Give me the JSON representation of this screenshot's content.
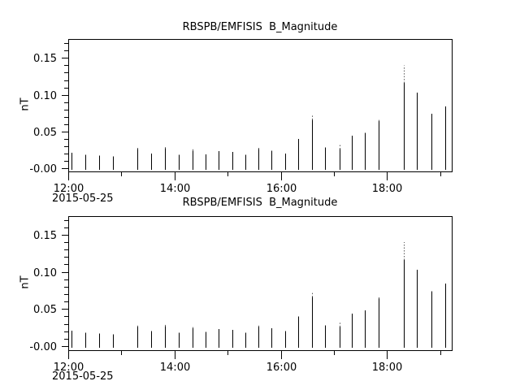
{
  "page": {
    "background": "#ffffff",
    "foreground": "#000000",
    "spike_color": "#000000",
    "dot_color": "#5a5a5a"
  },
  "plots": [
    {
      "title": "RBSPB/EMFISIS  B_Magnitude",
      "ylabel": "nT",
      "date_label": "2015-05-25"
    },
    {
      "title": "RBSPB/EMFISIS  B_Magnitude",
      "ylabel": "nT",
      "date_label": "2015-05-25"
    }
  ],
  "chart_data": [
    {
      "type": "bar",
      "subtype": "vertical-range-spikes",
      "panel": "top",
      "title": "RBSPB/EMFISIS  B_Magnitude",
      "ylabel": "nT",
      "date": "2015-05-25",
      "x_unit": "minutes after 12:00",
      "xlim": [
        0,
        433
      ],
      "ylim": [
        -0.0045,
        0.176
      ],
      "x_ticks_major": [
        {
          "t": 0,
          "label": "12:00"
        },
        {
          "t": 120,
          "label": "14:00"
        },
        {
          "t": 240,
          "label": "16:00"
        },
        {
          "t": 360,
          "label": "18:00"
        }
      ],
      "x_ticks_minor": [
        60,
        180,
        300,
        420
      ],
      "y_ticks_major": [
        {
          "v": 0.0,
          "label": "-0.00"
        },
        {
          "v": 0.05,
          "label": "0.05"
        },
        {
          "v": 0.1,
          "label": "0.10"
        },
        {
          "v": 0.15,
          "label": "0.15"
        }
      ],
      "y_minor_step": 0.01,
      "spike_low": -0.002,
      "spikes": [
        {
          "t": 4,
          "hi": 0.021
        },
        {
          "t": 19,
          "hi": 0.018
        },
        {
          "t": 35,
          "hi": 0.017
        },
        {
          "t": 50,
          "hi": 0.016
        },
        {
          "t": 78,
          "hi": 0.026,
          "dot": 0.028
        },
        {
          "t": 94,
          "hi": 0.02
        },
        {
          "t": 109,
          "hi": 0.027,
          "dot": 0.029
        },
        {
          "t": 125,
          "hi": 0.018
        },
        {
          "t": 140,
          "hi": 0.024,
          "dot": 0.026
        },
        {
          "t": 155,
          "hi": 0.019
        },
        {
          "t": 170,
          "hi": 0.023
        },
        {
          "t": 185,
          "hi": 0.022
        },
        {
          "t": 200,
          "hi": 0.018
        },
        {
          "t": 215,
          "hi": 0.026,
          "dot": 0.028
        },
        {
          "t": 229,
          "hi": 0.024
        },
        {
          "t": 245,
          "hi": 0.02
        },
        {
          "t": 260,
          "hi": 0.04
        },
        {
          "t": 275,
          "hi": 0.066,
          "dot": 0.073
        },
        {
          "t": 290,
          "hi": 0.028
        },
        {
          "t": 306,
          "hi": 0.026,
          "dot": 0.033
        },
        {
          "t": 320,
          "hi": 0.044
        },
        {
          "t": 335,
          "hi": 0.048
        },
        {
          "t": 350,
          "hi": 0.064,
          "dot": 0.066
        },
        {
          "t": 379,
          "hi": 0.116,
          "dot": 0.14
        },
        {
          "t": 394,
          "hi": 0.103
        },
        {
          "t": 410,
          "hi": 0.074
        },
        {
          "t": 426,
          "hi": 0.084
        }
      ]
    },
    {
      "type": "bar",
      "subtype": "vertical-range-spikes",
      "panel": "bottom",
      "title": "RBSPB/EMFISIS  B_Magnitude",
      "ylabel": "nT",
      "date": "2015-05-25",
      "x_unit": "minutes after 12:00",
      "xlim": [
        0,
        433
      ],
      "ylim": [
        -0.0055,
        0.175
      ],
      "x_ticks_major": [
        {
          "t": 0,
          "label": "12:00"
        },
        {
          "t": 120,
          "label": "14:00"
        },
        {
          "t": 240,
          "label": "16:00"
        },
        {
          "t": 360,
          "label": "18:00"
        }
      ],
      "x_ticks_minor": [
        60,
        180,
        300,
        420
      ],
      "y_ticks_major": [
        {
          "v": 0.0,
          "label": "-0.00"
        },
        {
          "v": 0.05,
          "label": "0.05"
        },
        {
          "v": 0.1,
          "label": "0.10"
        },
        {
          "v": 0.15,
          "label": "0.15"
        }
      ],
      "y_minor_step": 0.01,
      "spike_low": -0.002,
      "spikes": [
        {
          "t": 4,
          "hi": 0.021
        },
        {
          "t": 19,
          "hi": 0.018
        },
        {
          "t": 35,
          "hi": 0.017
        },
        {
          "t": 50,
          "hi": 0.016
        },
        {
          "t": 78,
          "hi": 0.026,
          "dot": 0.028
        },
        {
          "t": 94,
          "hi": 0.02
        },
        {
          "t": 109,
          "hi": 0.027,
          "dot": 0.029
        },
        {
          "t": 125,
          "hi": 0.018
        },
        {
          "t": 140,
          "hi": 0.024,
          "dot": 0.026
        },
        {
          "t": 155,
          "hi": 0.019
        },
        {
          "t": 170,
          "hi": 0.023
        },
        {
          "t": 185,
          "hi": 0.022
        },
        {
          "t": 200,
          "hi": 0.018
        },
        {
          "t": 215,
          "hi": 0.026,
          "dot": 0.028
        },
        {
          "t": 229,
          "hi": 0.024
        },
        {
          "t": 245,
          "hi": 0.02
        },
        {
          "t": 260,
          "hi": 0.04
        },
        {
          "t": 275,
          "hi": 0.066,
          "dot": 0.073
        },
        {
          "t": 290,
          "hi": 0.028
        },
        {
          "t": 306,
          "hi": 0.026,
          "dot": 0.033
        },
        {
          "t": 320,
          "hi": 0.044
        },
        {
          "t": 335,
          "hi": 0.048
        },
        {
          "t": 350,
          "hi": 0.064,
          "dot": 0.066
        },
        {
          "t": 379,
          "hi": 0.116,
          "dot": 0.14
        },
        {
          "t": 394,
          "hi": 0.103
        },
        {
          "t": 410,
          "hi": 0.074
        },
        {
          "t": 426,
          "hi": 0.084
        }
      ]
    }
  ]
}
